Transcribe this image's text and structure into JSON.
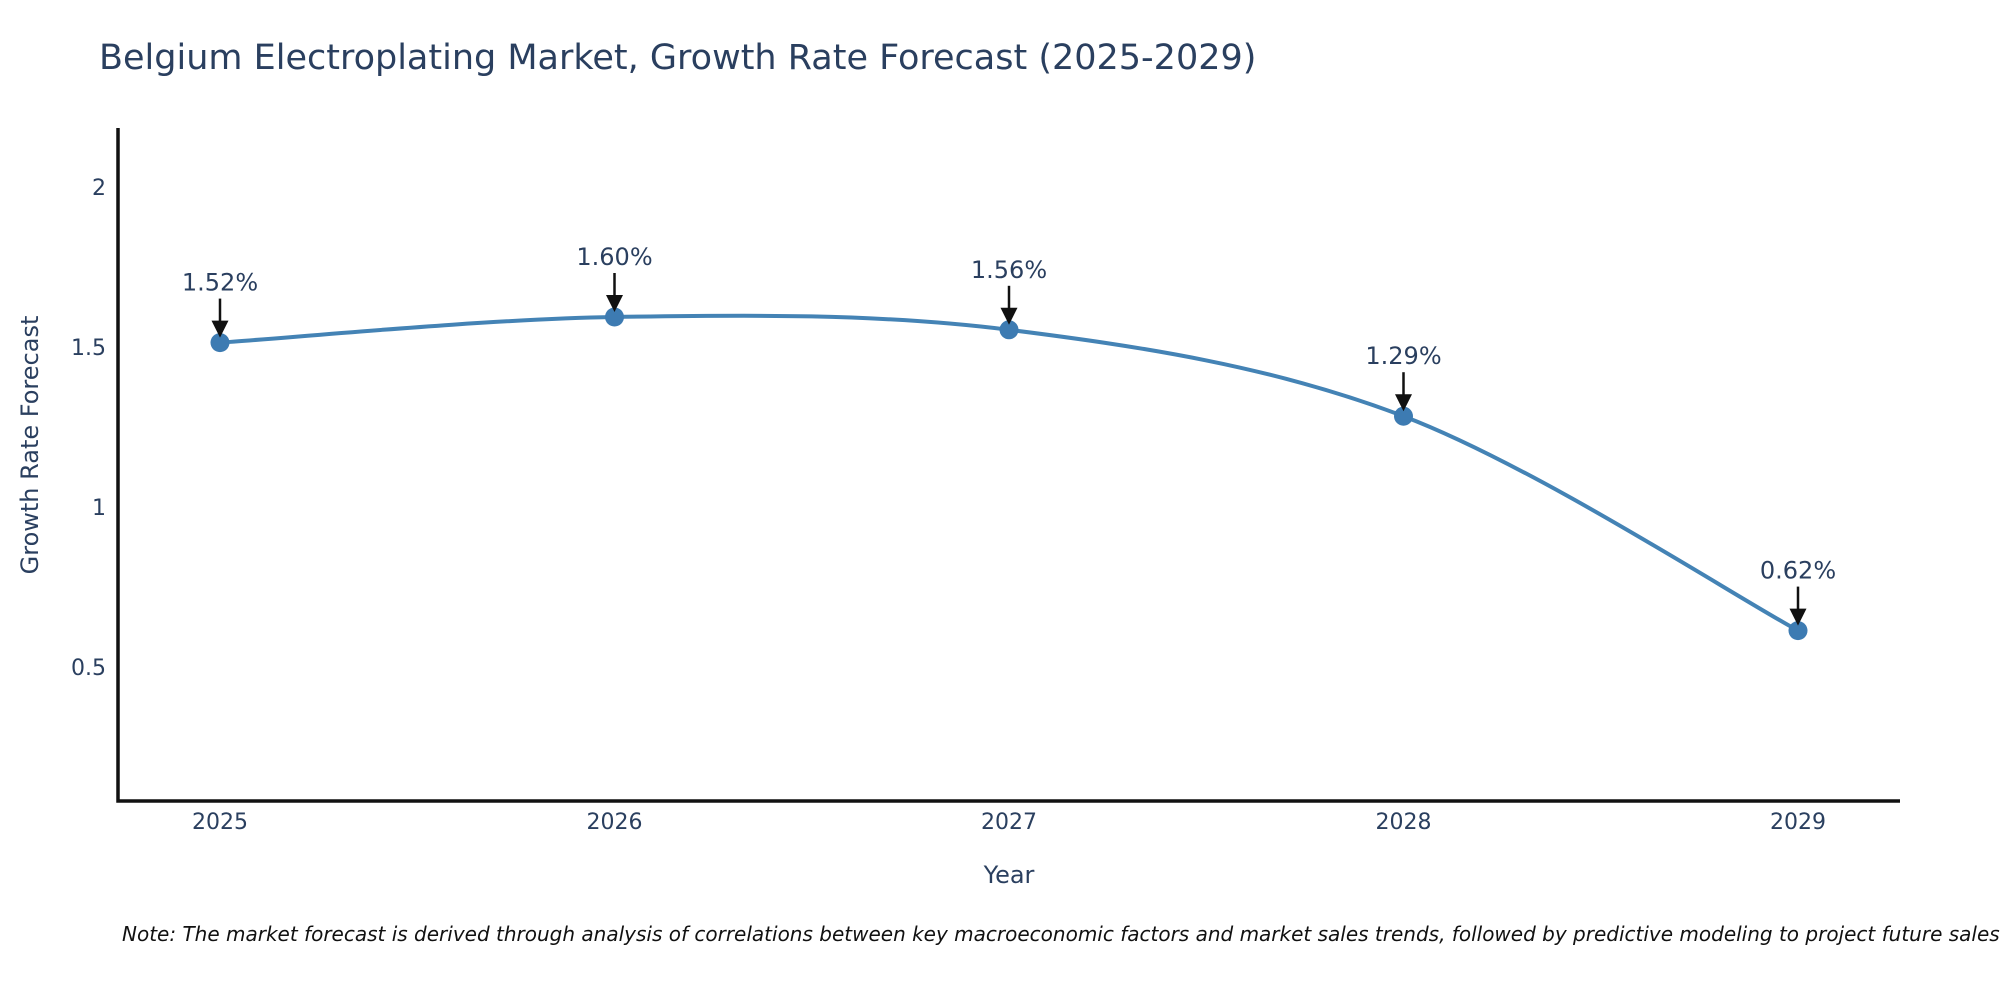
{
  "chart_data": {
    "type": "line",
    "line_shape": "spline",
    "title": "Belgium Electroplating Market, Growth Rate Forecast (2025-2029)",
    "xlabel": "Year",
    "ylabel": "Growth Rate Forecast",
    "x": [
      2025,
      2026,
      2027,
      2028,
      2029
    ],
    "x_labels": [
      "2025",
      "2026",
      "2027",
      "2028",
      "2029"
    ],
    "values": [
      1.52,
      1.6,
      1.56,
      1.29,
      0.62
    ],
    "annotations": [
      "1.52%",
      "1.60%",
      "1.56%",
      "1.29%",
      "0.62%"
    ],
    "yticks": [
      {
        "label": "2",
        "value": 2.0
      },
      {
        "label": "1.5",
        "value": 1.5
      },
      {
        "label": "1",
        "value": 1.0
      },
      {
        "label": "0.5",
        "value": 0.5
      }
    ],
    "ylim": [
      0.09,
      2.19
    ],
    "grid": false,
    "legend": "none",
    "colors": {
      "line": "#4483b5",
      "marker": "#3d7bb2",
      "axis": "#111111",
      "arrow": "#111111",
      "text": "#2a3f5f"
    }
  },
  "note": {
    "text": "Note: The market forecast is derived through analysis of correlations between key macroeconomic factors and market sales trends, followed by predictive modeling to project future sales"
  }
}
